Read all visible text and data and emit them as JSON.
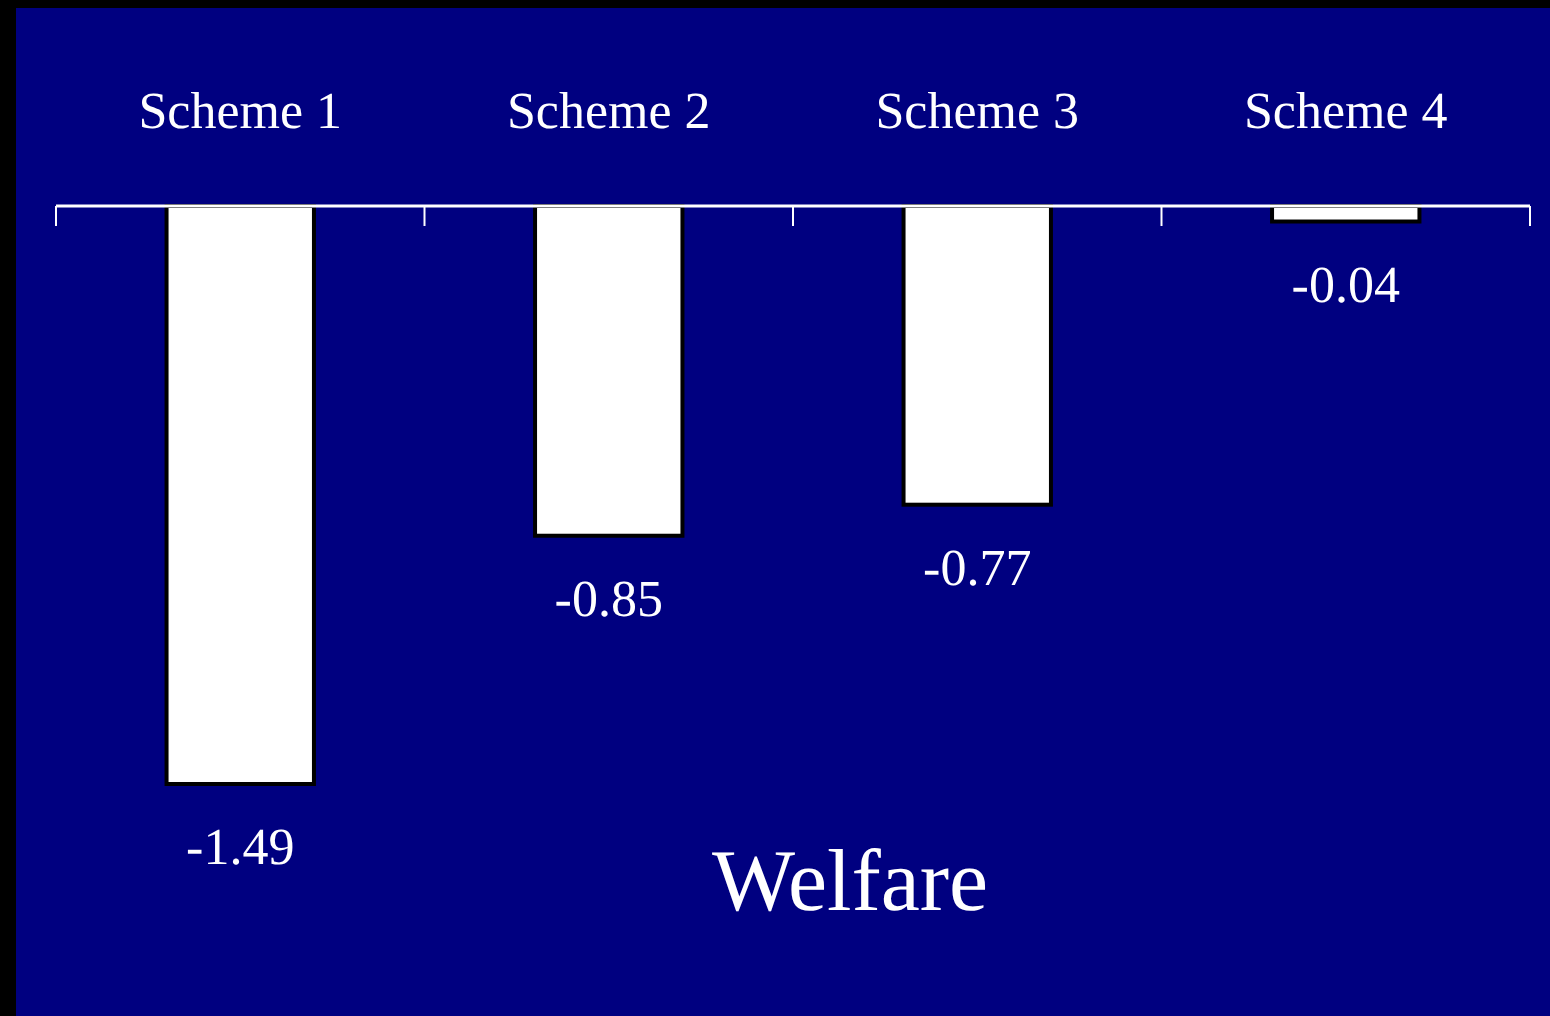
{
  "chart_data": {
    "type": "bar",
    "title": "Welfare",
    "categories": [
      "Scheme 1",
      "Scheme 2",
      "Scheme 3",
      "Scheme 4"
    ],
    "values": [
      -1.49,
      -0.85,
      -0.77,
      -0.04
    ],
    "color": "#ffffff",
    "data_labels": true
  }
}
